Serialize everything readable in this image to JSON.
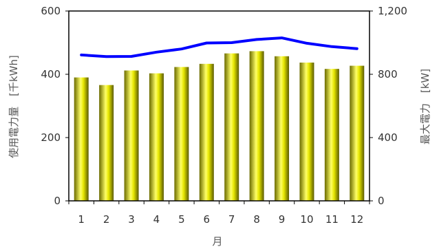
{
  "chart_data": {
    "type": "bar+line",
    "categories": [
      "1",
      "2",
      "3",
      "4",
      "5",
      "6",
      "7",
      "8",
      "9",
      "10",
      "11",
      "12"
    ],
    "xlabel": "月",
    "ylabel_left": "使用電力量　[千kWh]",
    "ylabel_right": "最大電力　[kW]",
    "ylim_left": [
      0,
      600
    ],
    "ylim_right": [
      0,
      1200
    ],
    "yticks_left": [
      "0",
      "200",
      "400",
      "600"
    ],
    "yticks_right": [
      "0",
      "400",
      "800",
      "1,200"
    ],
    "grid": false,
    "series": [
      {
        "type": "bar",
        "axis": "left",
        "values": [
          390,
          366,
          412,
          403,
          423,
          433,
          466,
          473,
          457,
          437,
          417,
          427
        ]
      },
      {
        "type": "line",
        "axis": "right",
        "values": [
          922,
          912,
          913,
          940,
          960,
          998,
          1000,
          1020,
          1030,
          996,
          975,
          962
        ]
      }
    ],
    "colors": {
      "bar_light": "#ffff66",
      "bar_mid": "#e6e600",
      "bar_dark": "#5a5a00",
      "line": "#0000ff",
      "axis": "#000000"
    }
  }
}
